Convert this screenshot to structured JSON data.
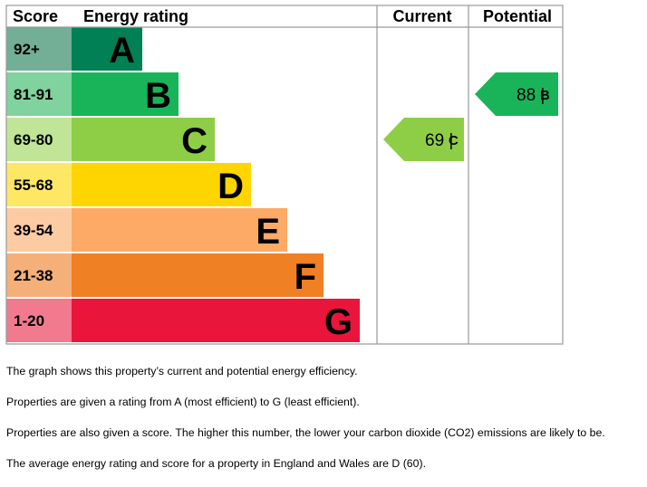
{
  "chart_data": {
    "type": "table",
    "headers": {
      "score": "Score",
      "rating": "Energy rating",
      "current": "Current",
      "potential": "Potential"
    },
    "bands": [
      {
        "letter": "A",
        "range": "92+",
        "color": "#008054",
        "tint": "#73ae96"
      },
      {
        "letter": "B",
        "range": "81-91",
        "color": "#19b459",
        "tint": "#80d29e"
      },
      {
        "letter": "C",
        "range": "69-80",
        "color": "#8dce46",
        "tint": "#c0e596"
      },
      {
        "letter": "D",
        "range": "55-68",
        "color": "#ffd500",
        "tint": "#ffe766"
      },
      {
        "letter": "E",
        "range": "39-54",
        "color": "#fcaa65",
        "tint": "#fdcba2"
      },
      {
        "letter": "F",
        "range": "21-38",
        "color": "#ef8023",
        "tint": "#f5b07a"
      },
      {
        "letter": "G",
        "range": "1-20",
        "color": "#e9153b",
        "tint": "#f17a8f"
      }
    ],
    "current": {
      "score": 69,
      "letter": "C",
      "label": "69 |",
      "color": "#8dce46"
    },
    "potential": {
      "score": 88,
      "letter": "B",
      "label": "88 |",
      "color": "#19b459"
    }
  },
  "notes": [
    "The graph shows this property’s current and potential energy efficiency.",
    "Properties are given a rating from A (most efficient) to G (least efficient).",
    "Properties are also given a score. The higher this number, the lower your carbon dioxide (CO2) emissions are likely to be.",
    "The average energy rating and score for a property in England and Wales are D (60)."
  ]
}
